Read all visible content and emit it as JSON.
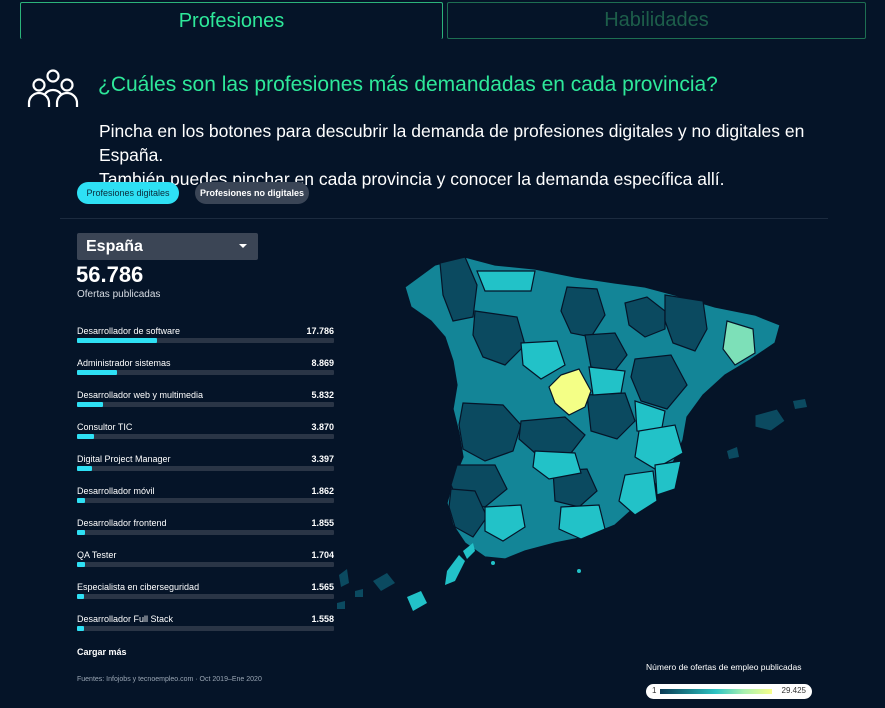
{
  "tabs": [
    {
      "label": "Profesiones",
      "active": true
    },
    {
      "label": "Habilidades",
      "active": false
    }
  ],
  "header": {
    "icon": "people-icon",
    "title": "¿Cuáles son las profesiones más demandadas en cada provincia?",
    "description_line1": "Pincha en los botones para descubrir la demanda de profesiones digitales y no digitales en España.",
    "description_line2": "También puedes pinchar en cada provincia y conocer la demanda específica allí."
  },
  "filters": {
    "digital": "Profesiones digitales",
    "non_digital": "Profesiones no digitales",
    "selected": "digital"
  },
  "region_select": {
    "value": "España"
  },
  "summary": {
    "total": "56.786",
    "label": "Ofertas publicadas"
  },
  "professions": [
    {
      "name": "Desarrollador de software",
      "value": "17.786",
      "share": 0.31
    },
    {
      "name": "Administrador sistemas",
      "value": "8.869",
      "share": 0.156
    },
    {
      "name": "Desarrollador web y multimedia",
      "value": "5.832",
      "share": 0.103
    },
    {
      "name": "Consultor TIC",
      "value": "3.870",
      "share": 0.068
    },
    {
      "name": "Digital Project Manager",
      "value": "3.397",
      "share": 0.06
    },
    {
      "name": "Desarrollador móvil",
      "value": "1.862",
      "share": 0.033
    },
    {
      "name": "Desarrollador frontend",
      "value": "1.855",
      "share": 0.033
    },
    {
      "name": "QA Tester",
      "value": "1.704",
      "share": 0.03
    },
    {
      "name": "Especialista en ciberseguridad",
      "value": "1.565",
      "share": 0.028
    },
    {
      "name": "Desarrollador Full Stack",
      "value": "1.558",
      "share": 0.027
    }
  ],
  "load_more": "Cargar más",
  "sources": "Fuentes: Infojobs y tecnoempleo.com · Oct 2019–Ene 2020",
  "legend": {
    "title": "Número de ofertas de empleo publicadas",
    "min": "1",
    "max": "29.425"
  },
  "colors": {
    "accent": "#2ee89a",
    "highlight": "#2ee0f4",
    "background": "#051428",
    "map_dark": "#0b4a60",
    "map_mid": "#138597",
    "map_light": "#22c2c8",
    "map_madrid": "#f4ff86",
    "map_barcelona": "#7de0b8"
  }
}
